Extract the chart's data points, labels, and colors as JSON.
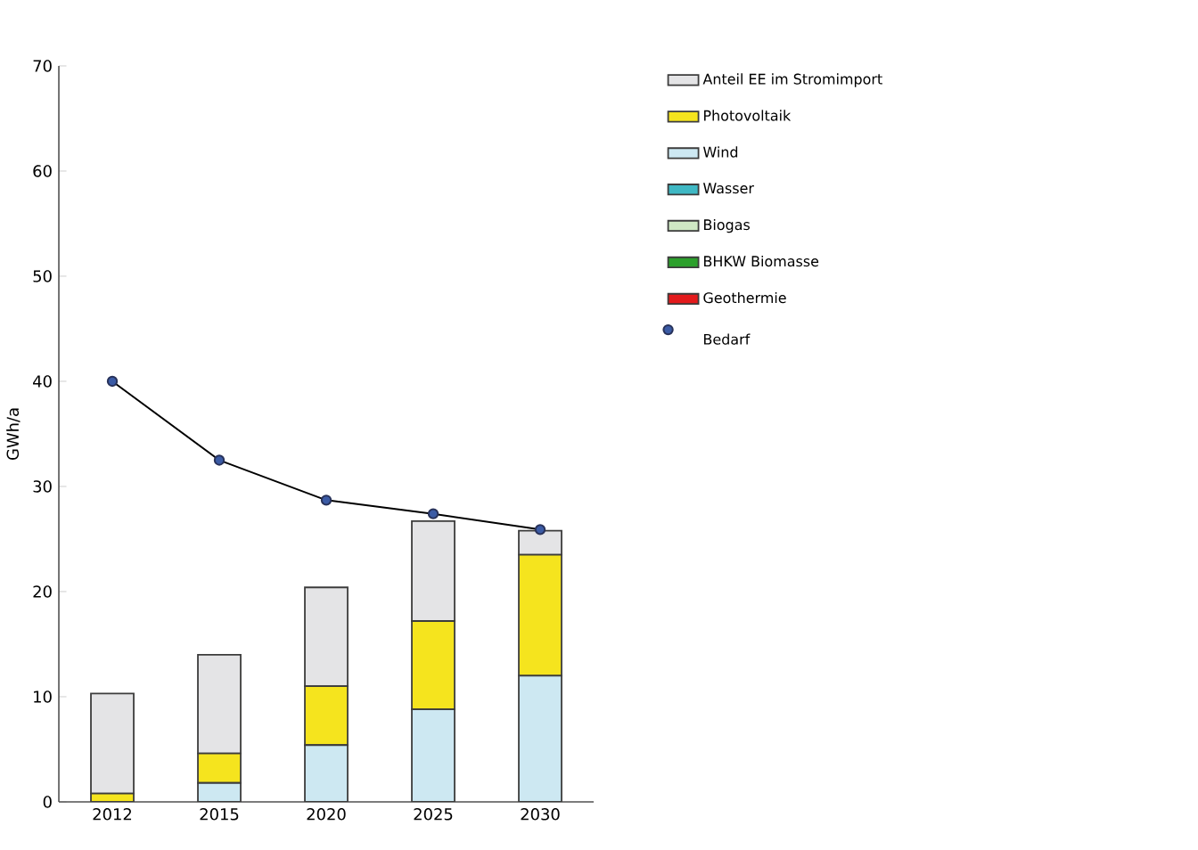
{
  "chart_data": {
    "type": "bar",
    "stacked": true,
    "ylabel": "GWh/a",
    "categories": [
      "2012",
      "2015",
      "2020",
      "2025",
      "2030"
    ],
    "ylim": [
      0,
      70
    ],
    "yticks": [
      0,
      10,
      20,
      30,
      40,
      50,
      60,
      70
    ],
    "grid": false,
    "legend": "right",
    "series": [
      {
        "name": "Geothermie",
        "color": "#e31a1c",
        "values": [
          0,
          0,
          0,
          0,
          0
        ]
      },
      {
        "name": "BHKW Biomasse",
        "color": "#2ca02c",
        "values": [
          0,
          0,
          0,
          0,
          0
        ]
      },
      {
        "name": "Biogas",
        "color": "#cfe8c4",
        "values": [
          0,
          0,
          0,
          0,
          0
        ]
      },
      {
        "name": "Wasser",
        "color": "#3fb8c4",
        "values": [
          0,
          0,
          0,
          0,
          0
        ]
      },
      {
        "name": "Wind",
        "color": "#cde8f2",
        "values": [
          0,
          1.8,
          5.4,
          8.8,
          12.0
        ]
      },
      {
        "name": "Photovoltaik",
        "color": "#f5e41e",
        "values": [
          0.8,
          2.8,
          5.6,
          8.4,
          11.5
        ]
      },
      {
        "name": "Anteil EE im Stromimport",
        "color": "#e4e4e6",
        "values": [
          9.5,
          9.4,
          9.4,
          9.5,
          2.3
        ]
      },
      {
        "name": "Bedarf",
        "type": "line",
        "marker": "circle",
        "color": "#3b5ba5",
        "values": [
          40.0,
          32.5,
          28.7,
          27.4,
          25.9
        ]
      }
    ]
  }
}
